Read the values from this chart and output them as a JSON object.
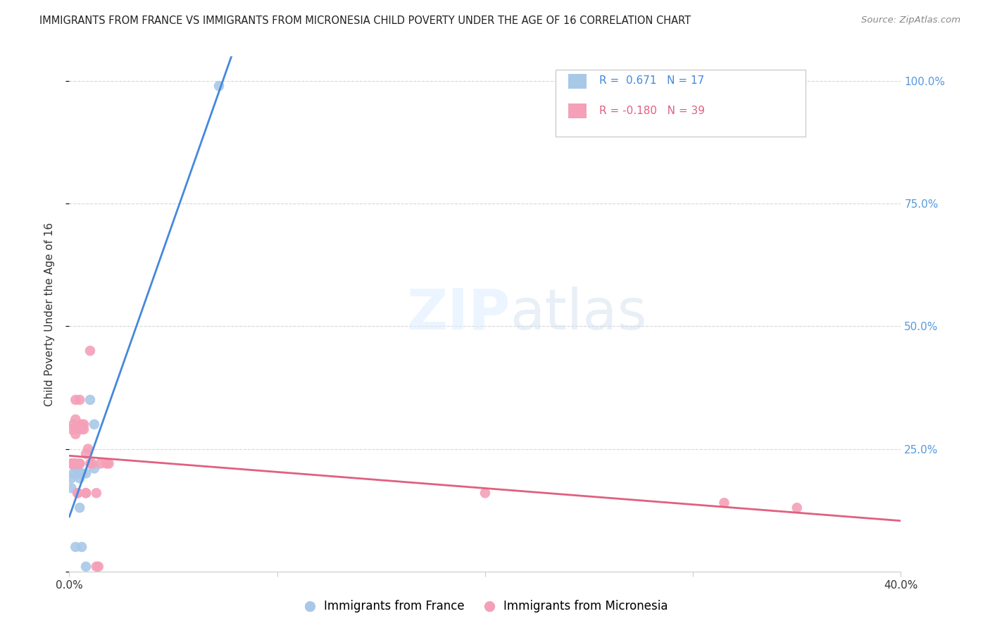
{
  "title": "IMMIGRANTS FROM FRANCE VS IMMIGRANTS FROM MICRONESIA CHILD POVERTY UNDER THE AGE OF 16 CORRELATION CHART",
  "source": "Source: ZipAtlas.com",
  "ylabel_label": "Child Poverty Under the Age of 16",
  "xlim": [
    0.0,
    0.4
  ],
  "ylim": [
    0.0,
    1.05
  ],
  "ytick_positions": [
    0.0,
    0.25,
    0.5,
    0.75,
    1.0
  ],
  "yticklabels_right": [
    "",
    "25.0%",
    "50.0%",
    "75.0%",
    "100.0%"
  ],
  "france_R": 0.671,
  "france_N": 17,
  "micronesia_R": -0.18,
  "micronesia_N": 39,
  "france_color": "#a8c8e8",
  "micronesia_color": "#f4a0b8",
  "france_line_color": "#4488dd",
  "micronesia_line_color": "#e06080",
  "france_x": [
    0.001,
    0.001,
    0.002,
    0.003,
    0.003,
    0.004,
    0.005,
    0.005,
    0.005,
    0.006,
    0.006,
    0.008,
    0.008,
    0.01,
    0.012,
    0.012,
    0.072
  ],
  "france_y": [
    0.17,
    0.19,
    0.2,
    0.21,
    0.05,
    0.21,
    0.2,
    0.19,
    0.13,
    0.2,
    0.05,
    0.2,
    0.01,
    0.35,
    0.3,
    0.21,
    0.99
  ],
  "micronesia_x": [
    0.001,
    0.001,
    0.001,
    0.001,
    0.002,
    0.002,
    0.002,
    0.002,
    0.003,
    0.003,
    0.003,
    0.003,
    0.003,
    0.003,
    0.004,
    0.004,
    0.005,
    0.005,
    0.005,
    0.006,
    0.006,
    0.007,
    0.007,
    0.008,
    0.008,
    0.008,
    0.009,
    0.01,
    0.01,
    0.011,
    0.013,
    0.013,
    0.014,
    0.015,
    0.018,
    0.019,
    0.2,
    0.315,
    0.35
  ],
  "micronesia_y": [
    0.22,
    0.22,
    0.22,
    0.29,
    0.22,
    0.22,
    0.22,
    0.3,
    0.22,
    0.22,
    0.28,
    0.29,
    0.31,
    0.35,
    0.16,
    0.16,
    0.22,
    0.22,
    0.35,
    0.29,
    0.3,
    0.29,
    0.3,
    0.16,
    0.24,
    0.16,
    0.25,
    0.22,
    0.45,
    0.22,
    0.16,
    0.01,
    0.01,
    0.22,
    0.22,
    0.22,
    0.16,
    0.14,
    0.13
  ]
}
